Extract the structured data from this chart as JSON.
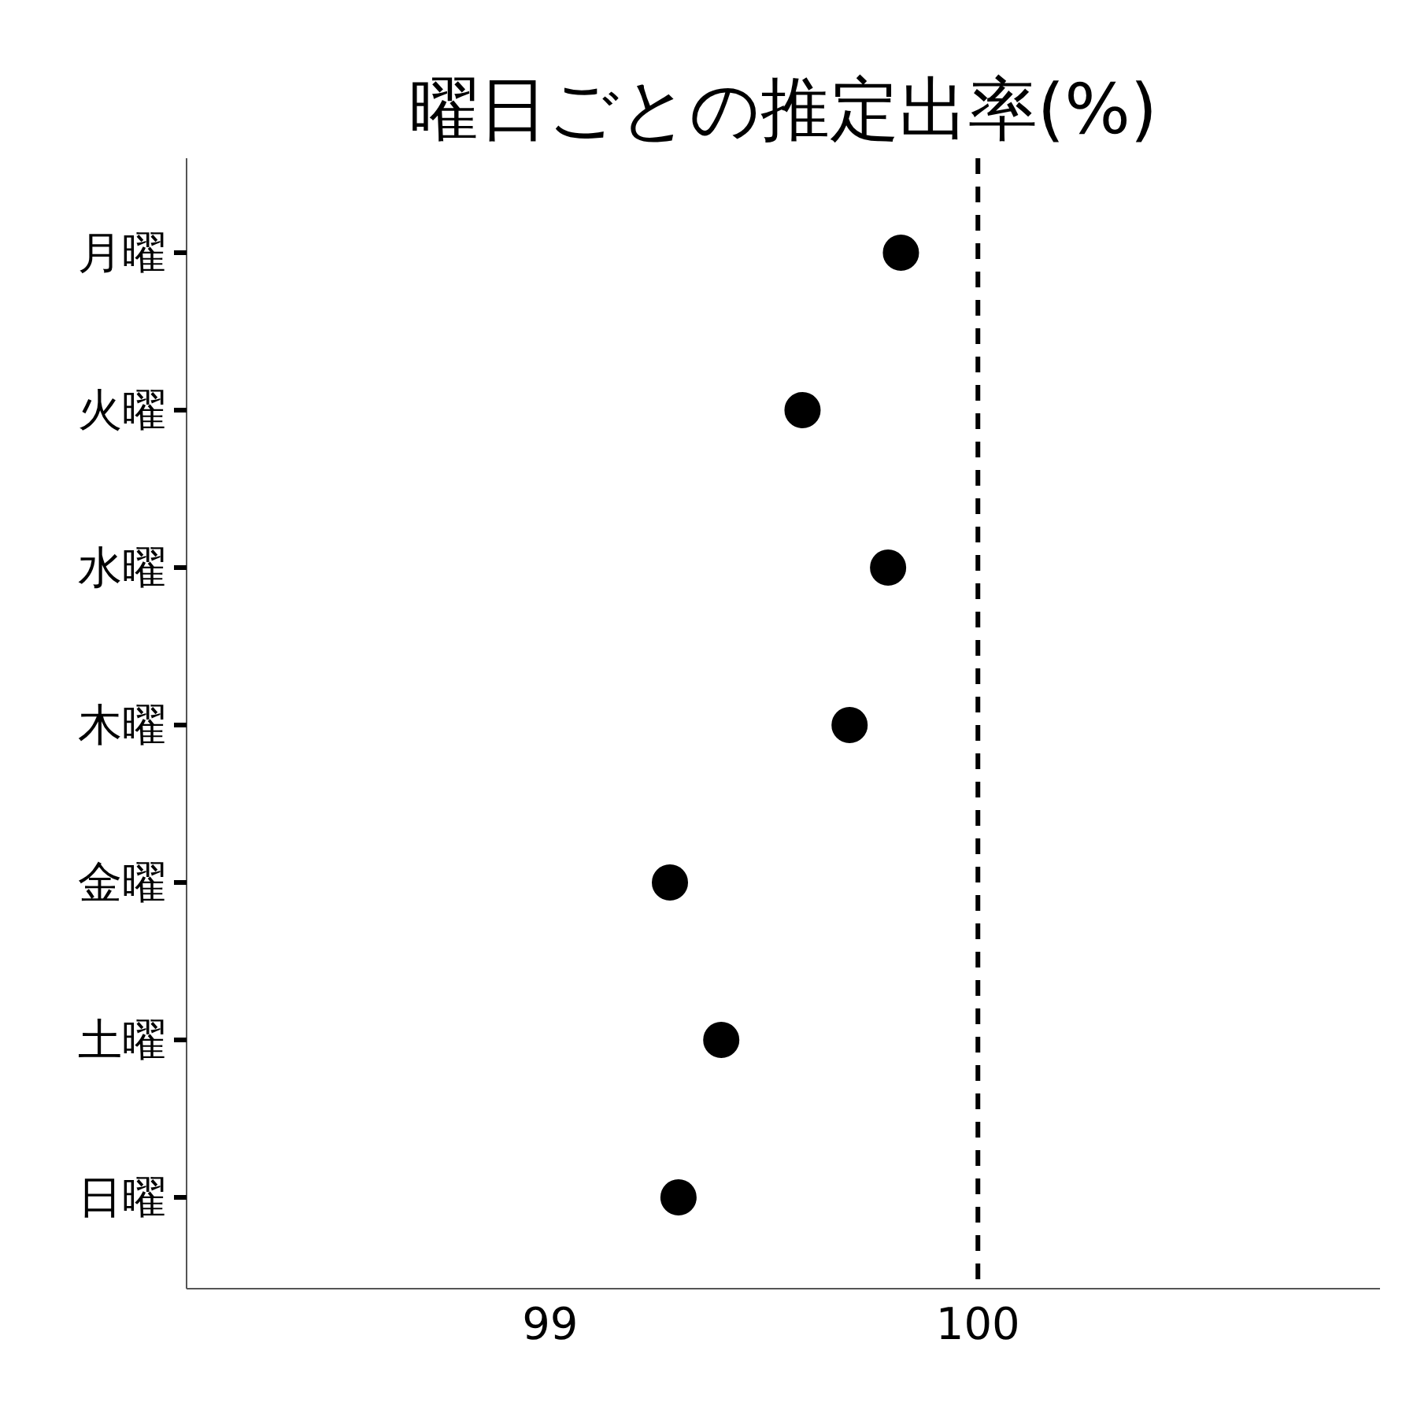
{
  "chart_data": {
    "type": "scatter",
    "title": "曜日ごとの推定出率(%)",
    "orientation": "horizontal",
    "categories": [
      "月曜",
      "火曜",
      "水曜",
      "木曜",
      "金曜",
      "土曜",
      "日曜"
    ],
    "values": [
      99.82,
      99.59,
      99.79,
      99.7,
      99.28,
      99.4,
      99.3
    ],
    "color": "#000000",
    "marker": "circle",
    "xlim": [
      98.15,
      100.94
    ],
    "xticks": [
      99,
      100
    ],
    "ref_lines": [
      {
        "axis": "x",
        "value": 100,
        "line_style": "dashed",
        "color": "#000000"
      }
    ],
    "grid": false
  }
}
